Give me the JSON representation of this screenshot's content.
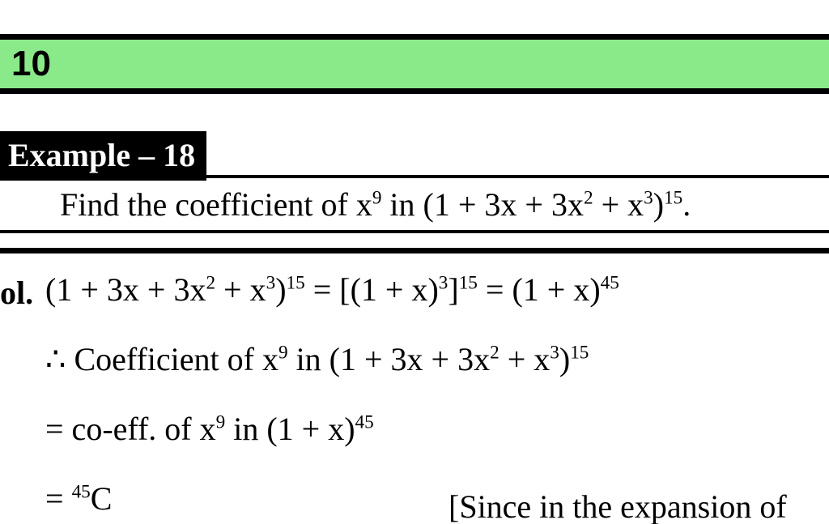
{
  "page_number": "10",
  "example_label": "Example – 18",
  "problem": {
    "prefix": "Find the coefficient of x",
    "exp1": "9",
    "mid1": " in (1 + 3x + 3x",
    "exp2": "2",
    "mid2": " + x",
    "exp3": "3",
    "close": ")",
    "exp4": "15",
    "period": "."
  },
  "solution_label": "ol.",
  "line1": {
    "a": "(1 + 3x + 3x",
    "e1": "2",
    "b": " + x",
    "e2": "3",
    "c": ")",
    "e3": "15",
    "d": " = [(1 + x)",
    "e4": "3",
    "e": "]",
    "e5": "15",
    "f": " = (1 + x)",
    "e6": "45"
  },
  "line2": {
    "a": "∴ Coefficient of x",
    "e1": "9",
    "b": " in (1 + 3x + 3x",
    "e2": "2",
    "c": " + x",
    "e3": "3",
    "d": ")",
    "e4": "15"
  },
  "line3": {
    "a": "= co-eff. of x",
    "e1": "9",
    "b": " in (1 + x)",
    "e2": "45"
  },
  "line4_left": {
    "a": "= ",
    "e1": "45",
    "b": "C"
  },
  "line4_right": "[Since in the expansion of",
  "colors": {
    "green_bg": "#8aea8a",
    "black": "#000000",
    "white": "#ffffff"
  }
}
